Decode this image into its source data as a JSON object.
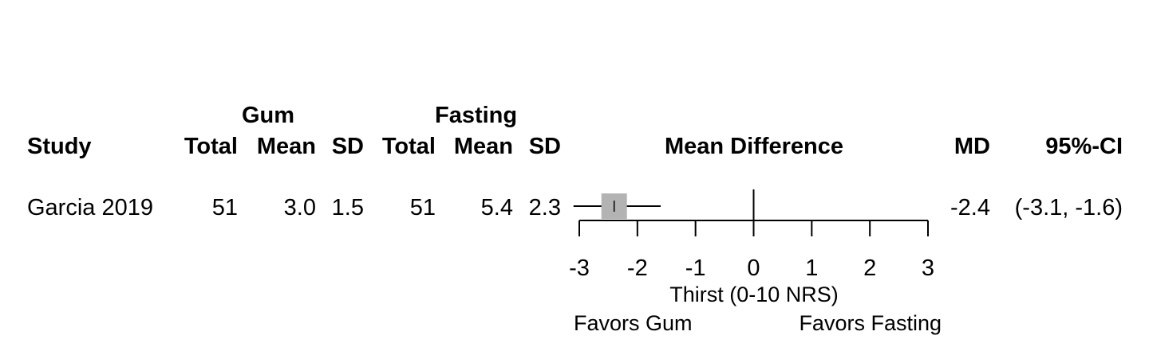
{
  "headers": {
    "study": "Study",
    "group1": "Gum",
    "group2": "Fasting",
    "total": "Total",
    "mean": "Mean",
    "sd": "SD",
    "effect": "Mean Difference",
    "md": "MD",
    "ci": "95%-CI"
  },
  "rows": [
    {
      "study": "Garcia 2019",
      "g1_total": "51",
      "g1_mean": "3.0",
      "g1_sd": "1.5",
      "g2_total": "51",
      "g2_mean": "5.4",
      "g2_sd": "2.3",
      "md_text": "-2.4",
      "ci_text": "(-3.1, -1.6)"
    }
  ],
  "footer": {
    "xlabel": "Thirst (0-10 NRS)",
    "left_label": "Favors Gum",
    "right_label": "Favors Fasting"
  },
  "chart_data": {
    "type": "forest",
    "measure": "Mean Difference",
    "xlim": [
      -3,
      3
    ],
    "ticks": [
      -3,
      -2,
      -1,
      0,
      1,
      2,
      3
    ],
    "null_value": 0,
    "studies": [
      {
        "name": "Garcia 2019",
        "md": -2.4,
        "ci_lower": -3.1,
        "ci_upper": -1.6
      }
    ],
    "xlabel": "Thirst (0-10 NRS)",
    "favors_left": "Favors Gum",
    "favors_right": "Favors Fasting",
    "colors": {
      "box": "#b3b3b3",
      "line": "#000000"
    }
  }
}
